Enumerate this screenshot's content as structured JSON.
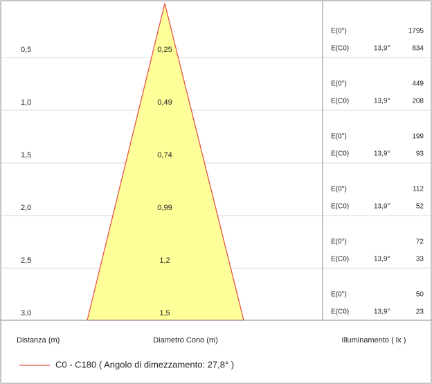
{
  "rows": [
    {
      "distance": "0,5",
      "diameter": "0,25",
      "e0_label": "E(0°)",
      "e0": 1795,
      "ec0_label": "E(C0)",
      "angle": "13,9°",
      "ec0": 834
    },
    {
      "distance": "1,0",
      "diameter": "0,49",
      "e0_label": "E(0°)",
      "e0": 449,
      "ec0_label": "E(C0)",
      "angle": "13,9°",
      "ec0": 208
    },
    {
      "distance": "1,5",
      "diameter": "0,74",
      "e0_label": "E(0°)",
      "e0": 199,
      "ec0_label": "E(C0)",
      "angle": "13,9°",
      "ec0": 93
    },
    {
      "distance": "2,0",
      "diameter": "0,99",
      "e0_label": "E(0°)",
      "e0": 112,
      "ec0_label": "E(C0)",
      "angle": "13,9°",
      "ec0": 52
    },
    {
      "distance": "2,5",
      "diameter": "1,2",
      "e0_label": "E(0°)",
      "e0": 72,
      "ec0_label": "E(C0)",
      "angle": "13,9°",
      "ec0": 33
    },
    {
      "distance": "3,0",
      "diameter": "1,5",
      "e0_label": "E(0°)",
      "e0": 50,
      "ec0_label": "E(C0)",
      "angle": "13,9°",
      "ec0": 23
    }
  ],
  "footer": {
    "distance_header": "Distanza (m)",
    "diameter_header": "Diametro Cono (m)",
    "illuminance_header": "Illuminamento ( lx )"
  },
  "legend": {
    "label": "C0 - C180  ( Angolo di dimezzamento: 27,8° )"
  }
}
